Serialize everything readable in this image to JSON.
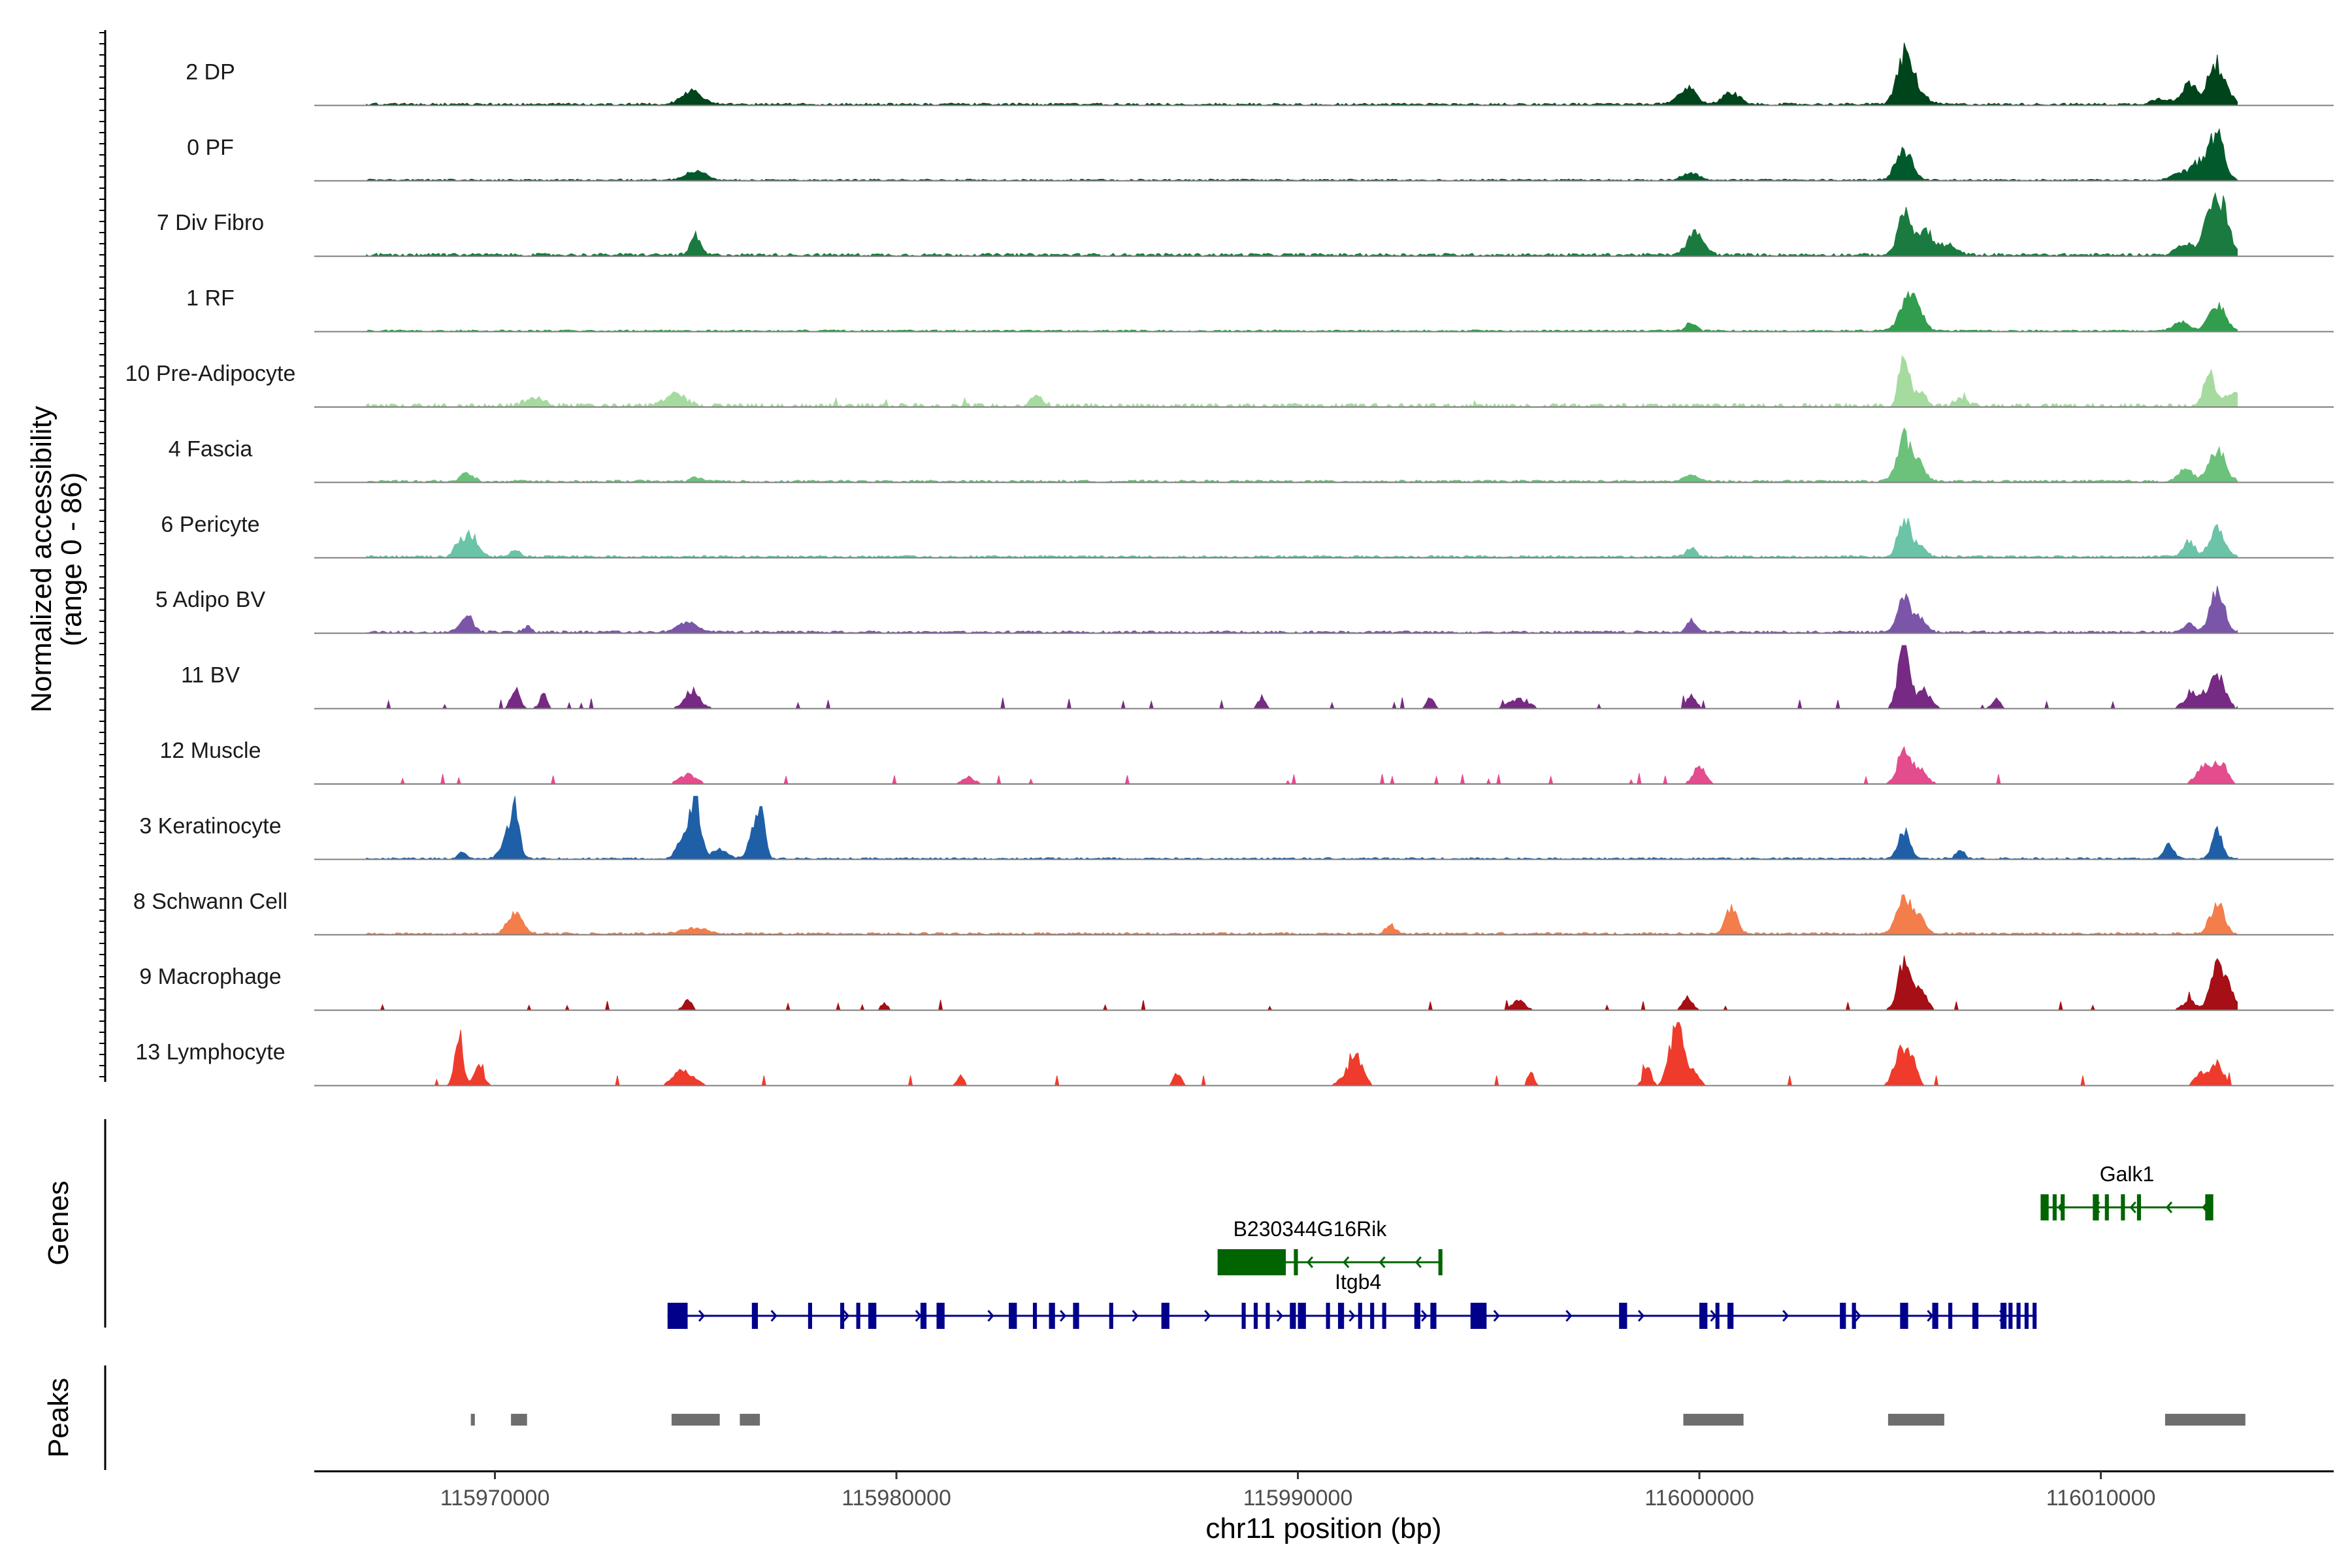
{
  "chart_data": {
    "type": "area",
    "title": "",
    "xlabel": "chr11 position (bp)",
    "ylabel": "Normalized accessibility",
    "ylabel_range": "(range 0 - 86)",
    "ylim": [
      0,
      86
    ],
    "xlim": [
      115965500,
      116015800
    ],
    "x_ticks": [
      115970000,
      115980000,
      115990000,
      116000000,
      116010000
    ],
    "x_tick_labels": [
      "115970000",
      "115980000",
      "115990000",
      "116000000",
      "116010000"
    ],
    "region": {
      "start": 115966800,
      "end": 116013400
    },
    "tracks": [
      {
        "name": "2 DP",
        "color": "#00441b",
        "noise": 0.04,
        "sparse": 0.0,
        "peaks": [
          [
            115974900,
            260,
            0.22
          ],
          [
            115999700,
            220,
            0.28
          ],
          [
            116000800,
            200,
            0.22
          ],
          [
            116005100,
            180,
            0.62
          ],
          [
            116005300,
            260,
            0.3
          ],
          [
            116011500,
            220,
            0.1
          ],
          [
            116012200,
            180,
            0.35
          ],
          [
            116012800,
            170,
            0.52
          ],
          [
            116013000,
            200,
            0.3
          ]
        ]
      },
      {
        "name": "0 PF",
        "color": "#005a2b",
        "noise": 0.03,
        "sparse": 0.0,
        "peaks": [
          [
            115975000,
            240,
            0.15
          ],
          [
            115999800,
            200,
            0.12
          ],
          [
            116005100,
            200,
            0.52
          ],
          [
            116012000,
            220,
            0.12
          ],
          [
            116012900,
            170,
            0.78
          ],
          [
            116012500,
            200,
            0.3
          ]
        ]
      },
      {
        "name": "7 Div Fibro",
        "color": "#1b7a3f",
        "noise": 0.05,
        "sparse": 0.0,
        "peaks": [
          [
            115975000,
            120,
            0.35
          ],
          [
            115999900,
            200,
            0.38
          ],
          [
            116005100,
            150,
            0.8
          ],
          [
            116005600,
            220,
            0.4
          ],
          [
            116006200,
            200,
            0.15
          ],
          [
            116012100,
            200,
            0.2
          ],
          [
            116012800,
            200,
            0.88
          ],
          [
            116013100,
            150,
            0.45
          ]
        ]
      },
      {
        "name": "1 RF",
        "color": "#319e4e",
        "noise": 0.03,
        "sparse": 0.0,
        "peaks": [
          [
            115999800,
            120,
            0.15
          ],
          [
            116005200,
            200,
            0.55
          ],
          [
            116005500,
            150,
            0.2
          ],
          [
            116012000,
            180,
            0.15
          ],
          [
            116012900,
            200,
            0.45
          ]
        ]
      },
      {
        "name": "10 Pre-Adipocyte",
        "color": "#a6dba0",
        "noise": 0.06,
        "sparse": 0.25,
        "peaks": [
          [
            115971000,
            250,
            0.12
          ],
          [
            115974500,
            250,
            0.2
          ],
          [
            115983500,
            150,
            0.15
          ],
          [
            116005100,
            120,
            0.98
          ],
          [
            116005500,
            150,
            0.2
          ],
          [
            116006500,
            150,
            0.12
          ],
          [
            116012700,
            120,
            0.65
          ],
          [
            116013300,
            200,
            0.25
          ]
        ]
      },
      {
        "name": "4 Fascia",
        "color": "#6cc27a",
        "noise": 0.04,
        "sparse": 0.0,
        "peaks": [
          [
            115969300,
            150,
            0.15
          ],
          [
            115975000,
            120,
            0.08
          ],
          [
            115999800,
            150,
            0.12
          ],
          [
            116005100,
            180,
            0.72
          ],
          [
            116005500,
            150,
            0.25
          ],
          [
            116012100,
            180,
            0.2
          ],
          [
            116012900,
            200,
            0.52
          ]
        ]
      },
      {
        "name": "6 Pericyte",
        "color": "#6bc3a8",
        "noise": 0.04,
        "sparse": 0.0,
        "peaks": [
          [
            115969400,
            180,
            0.35
          ],
          [
            115969100,
            120,
            0.2
          ],
          [
            115970500,
            120,
            0.1
          ],
          [
            115999800,
            120,
            0.15
          ],
          [
            116005100,
            150,
            0.65
          ],
          [
            116005500,
            150,
            0.2
          ],
          [
            116012200,
            150,
            0.25
          ],
          [
            116012900,
            180,
            0.48
          ]
        ]
      },
      {
        "name": "5 Adipo BV",
        "color": "#7b56a8",
        "noise": 0.04,
        "sparse": 0.0,
        "peaks": [
          [
            115969300,
            150,
            0.3
          ],
          [
            115970800,
            100,
            0.1
          ],
          [
            115974800,
            250,
            0.15
          ],
          [
            115999800,
            120,
            0.2
          ],
          [
            116005100,
            150,
            0.62
          ],
          [
            116005500,
            150,
            0.25
          ],
          [
            116012200,
            150,
            0.15
          ],
          [
            116012900,
            170,
            0.68
          ]
        ]
      },
      {
        "name": "11 BV",
        "color": "#762a83",
        "noise": 0.02,
        "sparse": 0.55,
        "peaks": [
          [
            115970500,
            100,
            0.35
          ],
          [
            115971200,
            80,
            0.25
          ],
          [
            115974900,
            180,
            0.3
          ],
          [
            115989100,
            80,
            0.2
          ],
          [
            115993300,
            80,
            0.2
          ],
          [
            115995500,
            250,
            0.15
          ],
          [
            115999800,
            120,
            0.2
          ],
          [
            116005100,
            150,
            1.0
          ],
          [
            116005600,
            150,
            0.3
          ],
          [
            116007400,
            100,
            0.15
          ],
          [
            116012300,
            200,
            0.25
          ],
          [
            116012900,
            180,
            0.58
          ]
        ]
      },
      {
        "name": "12 Muscle",
        "color": "#e34c8d",
        "noise": 0.02,
        "sparse": 0.55,
        "peaks": [
          [
            115974800,
            200,
            0.15
          ],
          [
            115981800,
            150,
            0.1
          ],
          [
            116000000,
            150,
            0.28
          ],
          [
            116005100,
            150,
            0.62
          ],
          [
            116005500,
            150,
            0.25
          ],
          [
            116012600,
            200,
            0.3
          ],
          [
            116013000,
            150,
            0.32
          ]
        ]
      },
      {
        "name": "3 Keratinocyte",
        "color": "#1f5fa8",
        "noise": 0.03,
        "sparse": 0.0,
        "peaks": [
          [
            115970500,
            110,
            0.85
          ],
          [
            115970300,
            150,
            0.3
          ],
          [
            115969200,
            100,
            0.1
          ],
          [
            115975000,
            120,
            1.0
          ],
          [
            115974700,
            150,
            0.4
          ],
          [
            115975600,
            200,
            0.15
          ],
          [
            115976600,
            110,
            0.85
          ],
          [
            115976400,
            120,
            0.3
          ],
          [
            116005100,
            150,
            0.45
          ],
          [
            116006500,
            100,
            0.15
          ],
          [
            116011700,
            120,
            0.25
          ],
          [
            116012900,
            120,
            0.52
          ]
        ]
      },
      {
        "name": "8 Schwann Cell",
        "color": "#f37d4b",
        "noise": 0.04,
        "sparse": 0.0,
        "peaks": [
          [
            115970500,
            180,
            0.35
          ],
          [
            115975000,
            300,
            0.1
          ],
          [
            115992300,
            120,
            0.15
          ],
          [
            116000800,
            150,
            0.42
          ],
          [
            116005100,
            180,
            0.62
          ],
          [
            116005500,
            150,
            0.25
          ],
          [
            116012900,
            170,
            0.52
          ]
        ]
      },
      {
        "name": "9 Macrophage",
        "color": "#a50f15",
        "noise": 0.02,
        "sparse": 0.55,
        "peaks": [
          [
            115974800,
            100,
            0.15
          ],
          [
            115979700,
            80,
            0.1
          ],
          [
            115995500,
            150,
            0.15
          ],
          [
            115999700,
            120,
            0.2
          ],
          [
            116005100,
            150,
            0.8
          ],
          [
            116005500,
            150,
            0.35
          ],
          [
            116012200,
            150,
            0.15
          ],
          [
            116012900,
            160,
            0.8
          ],
          [
            116013200,
            150,
            0.3
          ]
        ]
      },
      {
        "name": "13 Lymphocyte",
        "color": "#ef3b2c",
        "noise": 0.0,
        "sparse": 0.85,
        "peaks": [
          [
            115969100,
            100,
            0.95
          ],
          [
            115969600,
            120,
            0.3
          ],
          [
            115974700,
            250,
            0.25
          ],
          [
            115981600,
            80,
            0.18
          ],
          [
            115987000,
            100,
            0.2
          ],
          [
            115991300,
            200,
            0.25
          ],
          [
            115991500,
            150,
            0.3
          ],
          [
            115995800,
            80,
            0.22
          ],
          [
            115998700,
            100,
            0.3
          ],
          [
            115999300,
            120,
            0.6
          ],
          [
            115999500,
            100,
            1.0
          ],
          [
            115999800,
            150,
            0.3
          ],
          [
            116005000,
            150,
            0.55
          ],
          [
            116005300,
            120,
            0.45
          ],
          [
            116012500,
            150,
            0.2
          ],
          [
            116012900,
            150,
            0.38
          ]
        ]
      }
    ],
    "genes": [
      {
        "name": "Galk1",
        "color": "#006400",
        "strand": "-",
        "start": 116008500,
        "end": 116012800,
        "exons": [
          [
            116008500,
            116008700
          ],
          [
            116008800,
            116008900
          ],
          [
            116009000,
            116009100
          ],
          [
            116009800,
            116009950
          ],
          [
            116010100,
            116010200
          ],
          [
            116010500,
            116010600
          ],
          [
            116010900,
            116011000
          ],
          [
            116012600,
            116012800
          ]
        ]
      },
      {
        "name": "B230344G16Rik",
        "color": "#006400",
        "strand": "-",
        "start": 115988000,
        "end": 115993600,
        "exons": [
          [
            115988000,
            115989700
          ],
          [
            115989900,
            115990000
          ],
          [
            115993500,
            115993600
          ]
        ]
      },
      {
        "name": "Itgb4",
        "color": "#00008b",
        "strand": "+",
        "start": 115974300,
        "end": 116008400,
        "exons": [
          [
            115974300,
            115974800
          ],
          [
            115976400,
            115976550
          ],
          [
            115977800,
            115977900
          ],
          [
            115978600,
            115978700
          ],
          [
            115979000,
            115979100
          ],
          [
            115979300,
            115979500
          ],
          [
            115980600,
            115980750
          ],
          [
            115981000,
            115981200
          ],
          [
            115982800,
            115983000
          ],
          [
            115983400,
            115983500
          ],
          [
            115983800,
            115983950
          ],
          [
            115984400,
            115984550
          ],
          [
            115985300,
            115985400
          ],
          [
            115986600,
            115986800
          ],
          [
            115988600,
            115988700
          ],
          [
            115988900,
            115989000
          ],
          [
            115989200,
            115989300
          ],
          [
            115989800,
            115989950
          ],
          [
            115990000,
            115990200
          ],
          [
            115990700,
            115990800
          ],
          [
            115991000,
            115991150
          ],
          [
            115991500,
            115991600
          ],
          [
            115991800,
            115991900
          ],
          [
            115992100,
            115992200
          ],
          [
            115992900,
            115993050
          ],
          [
            115993300,
            115993450
          ],
          [
            115994300,
            115994700
          ],
          [
            115998000,
            115998200
          ],
          [
            116000000,
            116000200
          ],
          [
            116000400,
            116000500
          ],
          [
            116000700,
            116000850
          ],
          [
            116003500,
            116003650
          ],
          [
            116003800,
            116003900
          ],
          [
            116005000,
            116005200
          ],
          [
            116005800,
            116005950
          ],
          [
            116006200,
            116006300
          ],
          [
            116006800,
            116006950
          ],
          [
            116007500,
            116007650
          ],
          [
            116007700,
            116007800
          ],
          [
            116007900,
            116008000
          ],
          [
            116008100,
            116008200
          ],
          [
            116008300,
            116008400
          ]
        ]
      }
    ],
    "peaks_track": [
      [
        115969400,
        115969500
      ],
      [
        115970400,
        115970800
      ],
      [
        115974400,
        115975600
      ],
      [
        115976100,
        115976600
      ],
      [
        115999600,
        116001100
      ],
      [
        116004700,
        116006100
      ],
      [
        116011600,
        116013600
      ]
    ],
    "panel_labels": {
      "genes": "Genes",
      "peaks": "Peaks"
    }
  }
}
